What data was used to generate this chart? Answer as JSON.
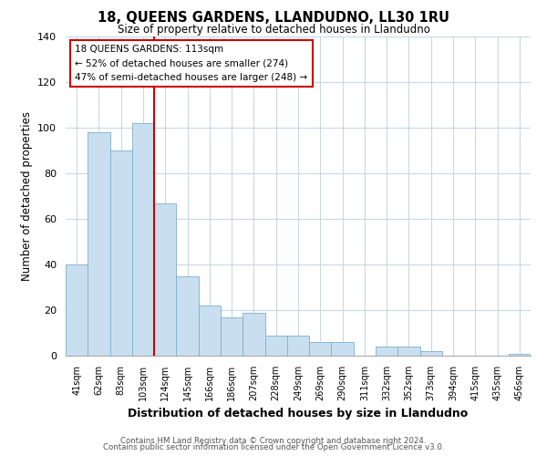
{
  "title": "18, QUEENS GARDENS, LLANDUDNO, LL30 1RU",
  "subtitle": "Size of property relative to detached houses in Llandudno",
  "xlabel": "Distribution of detached houses by size in Llandudno",
  "ylabel": "Number of detached properties",
  "bar_color": "#c9dff0",
  "bar_edge_color": "#7aafce",
  "categories": [
    "41sqm",
    "62sqm",
    "83sqm",
    "103sqm",
    "124sqm",
    "145sqm",
    "166sqm",
    "186sqm",
    "207sqm",
    "228sqm",
    "249sqm",
    "269sqm",
    "290sqm",
    "311sqm",
    "332sqm",
    "352sqm",
    "373sqm",
    "394sqm",
    "415sqm",
    "435sqm",
    "456sqm"
  ],
  "values": [
    40,
    98,
    90,
    102,
    67,
    35,
    22,
    17,
    19,
    9,
    9,
    6,
    6,
    0,
    4,
    4,
    2,
    0,
    0,
    0,
    1
  ],
  "ylim": [
    0,
    140
  ],
  "yticks": [
    0,
    20,
    40,
    60,
    80,
    100,
    120,
    140
  ],
  "vline_color": "#cc0000",
  "vline_index": 3.5,
  "annotation_title": "18 QUEENS GARDENS: 113sqm",
  "annotation_line1": "← 52% of detached houses are smaller (274)",
  "annotation_line2": "47% of semi-detached houses are larger (248) →",
  "annotation_box_color": "#ffffff",
  "annotation_box_edge_color": "#cc0000",
  "footer_line1": "Contains HM Land Registry data © Crown copyright and database right 2024.",
  "footer_line2": "Contains public sector information licensed under the Open Government Licence v3.0.",
  "background_color": "#ffffff",
  "grid_color": "#c8d8e8"
}
